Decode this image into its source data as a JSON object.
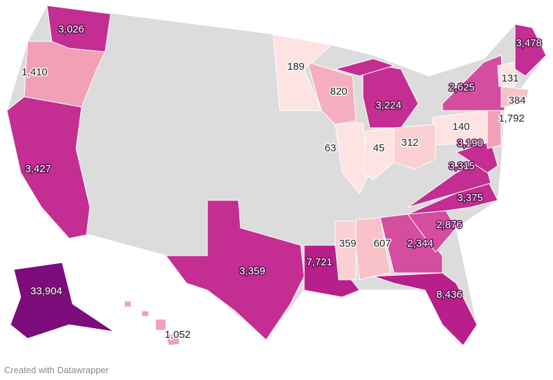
{
  "map": {
    "values": [
      3026,
      1410,
      3427,
      33904,
      1052,
      3359,
      7721,
      359,
      607,
      2344,
      8436,
      2876,
      3375,
      3315,
      3190,
      1792,
      140,
      2625,
      384,
      131,
      3478,
      3224,
      820,
      189,
      63,
      45,
      312
    ],
    "value_labels": [
      "3,026",
      "1,410",
      "3,427",
      "33,904",
      "1,052",
      "3,359",
      "7,721",
      "359",
      "607",
      "2,344",
      "8,436",
      "2,876",
      "3,375",
      "3,315",
      "3,190",
      "1,792",
      "140",
      "2,625",
      "384",
      "131",
      "3,478",
      "3,224",
      "820",
      "189",
      "63",
      "45",
      "312"
    ],
    "colors": [
      "#c42d91",
      "#f2a0b5",
      "#c42d91",
      "#7d0c7c",
      "#f2a0b5",
      "#c42d91",
      "#b91f8a",
      "#fbd0d2",
      "#f8c2c8",
      "#d44d9f",
      "#b91f8a",
      "#d44d9f",
      "#c42d91",
      "#c42d91",
      "#c42d91",
      "#f2a0b5",
      "#fde3e1",
      "#d44d9f",
      "#f8c2c8",
      "#fde3e1",
      "#c42d91",
      "#c42d91",
      "#f5aec0",
      "#fde3e1",
      "#fde3e1",
      "#fde3e1",
      "#fbd0d2"
    ]
  },
  "footer": "Created with Datawrapper"
}
